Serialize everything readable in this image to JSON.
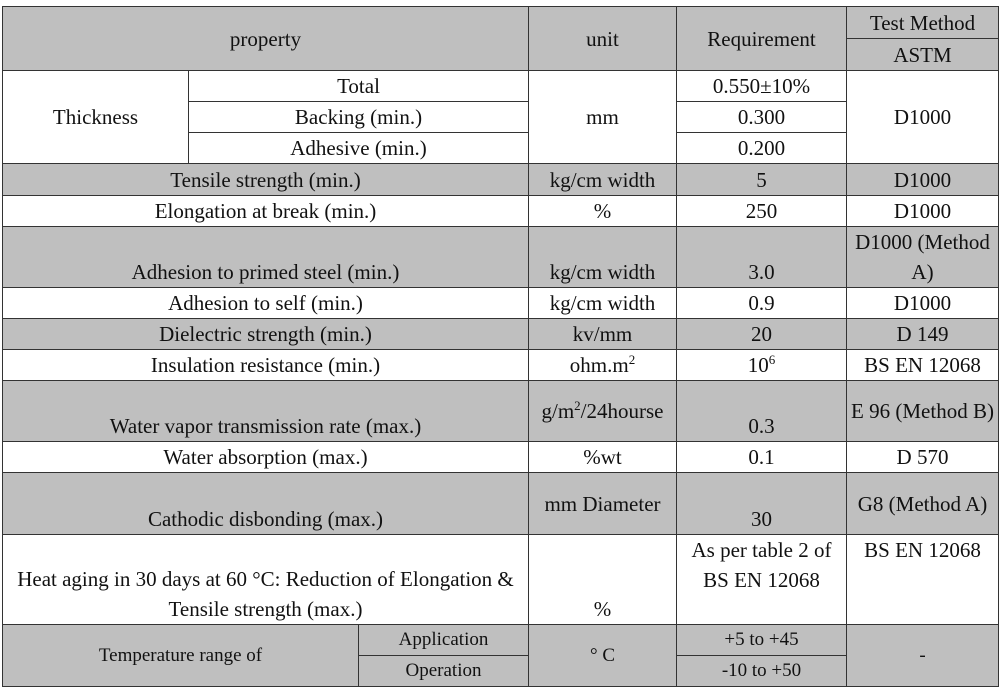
{
  "header": {
    "property": "property",
    "unit": "unit",
    "requirement": "Requirement",
    "test_method": "Test Method",
    "astm": "ASTM"
  },
  "thickness": {
    "label": "Thickness",
    "unit": "mm",
    "test_method": "D1000",
    "parts": [
      {
        "name": "Total",
        "requirement": "0.550±10%"
      },
      {
        "name": "Backing (min.)",
        "requirement": "0.300"
      },
      {
        "name": "Adhesive (min.)",
        "requirement": "0.200"
      }
    ]
  },
  "rows": [
    {
      "property": "Tensile strength (min.)",
      "unit": "kg/cm width",
      "requirement": "5",
      "test_method": "D1000"
    },
    {
      "property": "Elongation at break (min.)",
      "unit": "%",
      "requirement": "250",
      "test_method": "D1000"
    },
    {
      "property": "Adhesion to primed steel (min.)",
      "unit": "kg/cm width",
      "requirement": "3.0",
      "test_method": "D1000 (Method A)"
    },
    {
      "property": "Adhesion to self (min.)",
      "unit": "kg/cm width",
      "requirement": "0.9",
      "test_method": "D1000"
    },
    {
      "property": "Dielectric strength (min.)",
      "unit": "kv/mm",
      "requirement": "20",
      "test_method": "D 149"
    },
    {
      "property": "Insulation resistance (min.)",
      "unit": {
        "text": "ohm.m",
        "sup": "2"
      },
      "requirement": {
        "text": "10",
        "sup": "6"
      },
      "test_method": "BS EN 12068"
    },
    {
      "property": "Water vapor transmission rate (max.)",
      "unit": {
        "text": "g/m",
        "sup": "2",
        "tail": "/24hourse"
      },
      "requirement": "0.3",
      "test_method": "E 96 (Method B)"
    },
    {
      "property": "Water absorption (max.)",
      "unit": "%wt",
      "requirement": "0.1",
      "test_method": "D 570"
    },
    {
      "property": "Cathodic disbonding (max.)",
      "unit": "mm Diameter",
      "requirement": "30",
      "test_method": "G8 (Method A)"
    },
    {
      "property": "Heat aging in 30 days at 60 °C: Reduction of Elongation & Tensile strength (max.)",
      "unit": "%",
      "requirement": "As per table 2 of BS EN 12068",
      "test_method": "BS EN 12068"
    }
  ],
  "temperature": {
    "label": "Temperature range of",
    "unit": "° C",
    "test_method": "-",
    "parts": [
      {
        "name": "Application",
        "requirement": "+5 to +45"
      },
      {
        "name": "Operation",
        "requirement": "-10 to +50"
      }
    ]
  }
}
